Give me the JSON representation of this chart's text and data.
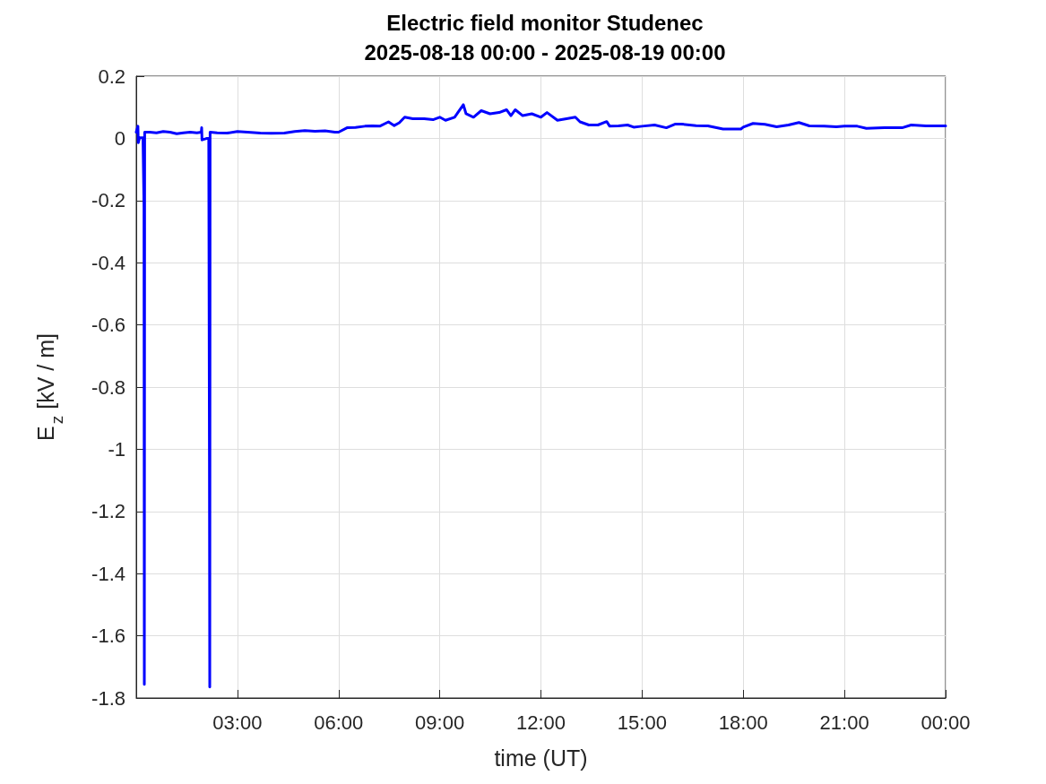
{
  "chart_data": {
    "type": "line",
    "title": "Electric field monitor Studenec",
    "subtitle": "2025-08-18 00:00 - 2025-08-19 00:00",
    "xlabel": "time (UT)",
    "ylabel": "E$_{z}$ [kV / m]",
    "x": [
      0,
      0.05,
      0.06,
      0.1,
      0.2,
      0.23,
      0.24,
      0.25,
      0.4,
      0.6,
      0.8,
      1.0,
      1.2,
      1.4,
      1.6,
      1.8,
      1.93,
      1.94,
      1.95,
      2.1,
      2.15,
      2.17,
      2.18,
      2.19,
      2.4,
      2.7,
      3.0,
      3.3,
      3.68,
      4.0,
      4.39,
      4.7,
      5.0,
      5.3,
      5.6,
      5.89,
      6.0,
      6.25,
      6.5,
      6.78,
      7.0,
      7.22,
      7.48,
      7.65,
      7.8,
      7.96,
      8.2,
      8.54,
      8.8,
      9.0,
      9.17,
      9.44,
      9.7,
      9.78,
      10.0,
      10.23,
      10.49,
      10.76,
      10.98,
      11.11,
      11.24,
      11.46,
      11.73,
      12.0,
      12.18,
      12.49,
      12.76,
      13.02,
      13.16,
      13.42,
      13.69,
      13.95,
      14.04,
      14.3,
      14.57,
      14.75,
      15.0,
      15.37,
      15.72,
      15.99,
      16.16,
      16.6,
      16.95,
      17.4,
      17.93,
      18.0,
      18.29,
      18.64,
      18.99,
      19.34,
      19.65,
      19.96,
      20.4,
      20.76,
      21.0,
      21.38,
      21.65,
      22.18,
      22.71,
      22.98,
      23.42,
      23.95,
      24.0
    ],
    "series": [
      {
        "color": "#0000ff",
        "values": [
          0.02,
          0.039,
          -0.014,
          0.002,
          0.002,
          -0.22,
          -1.756,
          0.02,
          0.02,
          0.018,
          0.022,
          0.02,
          0.015,
          0.018,
          0.02,
          0.018,
          0.02,
          0.034,
          -0.005,
          0.0,
          0.0,
          -1.02,
          -1.765,
          0.02,
          0.018,
          0.017,
          0.022,
          0.02,
          0.017,
          0.016,
          0.017,
          0.022,
          0.025,
          0.023,
          0.024,
          0.02,
          0.02,
          0.034,
          0.035,
          0.039,
          0.04,
          0.039,
          0.053,
          0.041,
          0.05,
          0.068,
          0.063,
          0.063,
          0.06,
          0.068,
          0.058,
          0.068,
          0.108,
          0.079,
          0.068,
          0.089,
          0.079,
          0.083,
          0.092,
          0.073,
          0.092,
          0.073,
          0.079,
          0.068,
          0.083,
          0.058,
          0.063,
          0.068,
          0.053,
          0.043,
          0.043,
          0.054,
          0.039,
          0.04,
          0.043,
          0.036,
          0.039,
          0.043,
          0.034,
          0.046,
          0.046,
          0.041,
          0.04,
          0.03,
          0.03,
          0.036,
          0.048,
          0.045,
          0.037,
          0.043,
          0.051,
          0.04,
          0.039,
          0.037,
          0.039,
          0.039,
          0.032,
          0.034,
          0.034,
          0.043,
          0.04,
          0.04,
          0.04
        ]
      }
    ],
    "xlim": [
      0,
      24
    ],
    "xticks": [
      {
        "value": 3,
        "label": "03:00"
      },
      {
        "value": 6,
        "label": "06:00"
      },
      {
        "value": 9,
        "label": "09:00"
      },
      {
        "value": 12,
        "label": "12:00"
      },
      {
        "value": 15,
        "label": "15:00"
      },
      {
        "value": 18,
        "label": "18:00"
      },
      {
        "value": 21,
        "label": "21:00"
      },
      {
        "value": 24,
        "label": "00:00"
      }
    ],
    "ylim": [
      -1.8,
      0.2
    ],
    "yticks": [
      -1.8,
      -1.6,
      -1.4,
      -1.2,
      -1,
      -0.8,
      -0.6,
      -0.4,
      -0.2,
      0,
      0.2
    ],
    "grid": true,
    "marker": "none",
    "line_style": "solid"
  }
}
